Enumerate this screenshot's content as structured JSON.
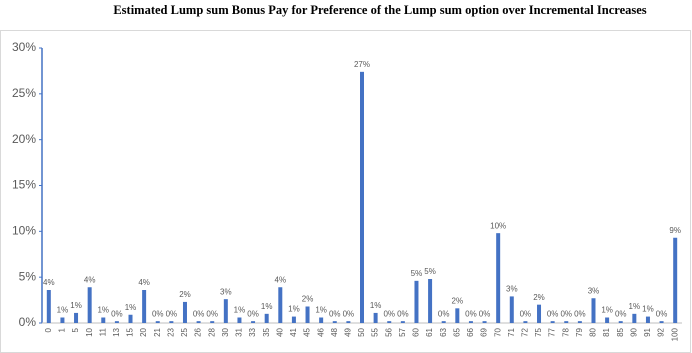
{
  "chart_data": {
    "type": "bar",
    "title": "Estimated Lump sum Bonus Pay for Preference of the Lump sum option over Incremental Increases",
    "categories": [
      "0",
      "1",
      "5",
      "10",
      "11",
      "13",
      "15",
      "20",
      "21",
      "23",
      "25",
      "26",
      "28",
      "30",
      "31",
      "33",
      "35",
      "40",
      "41",
      "45",
      "46",
      "48",
      "49",
      "50",
      "55",
      "56",
      "57",
      "60",
      "61",
      "63",
      "65",
      "66",
      "69",
      "70",
      "71",
      "72",
      "75",
      "77",
      "78",
      "79",
      "80",
      "81",
      "85",
      "90",
      "91",
      "92",
      "100"
    ],
    "values": [
      3.6,
      0.6,
      1.1,
      3.9,
      0.6,
      0.2,
      0.9,
      3.6,
      0.2,
      0.2,
      2.3,
      0.2,
      0.2,
      2.6,
      0.6,
      0.2,
      1.0,
      3.9,
      0.7,
      1.8,
      0.6,
      0.2,
      0.2,
      27.4,
      1.1,
      0.2,
      0.2,
      4.6,
      4.8,
      0.2,
      1.6,
      0.2,
      0.2,
      9.8,
      2.9,
      0.2,
      2.0,
      0.2,
      0.2,
      0.2,
      2.7,
      0.6,
      0.2,
      1.0,
      0.7,
      0.2,
      9.3
    ],
    "value_labels": [
      "4%",
      "1%",
      "1%",
      "4%",
      "1%",
      "0%",
      "1%",
      "4%",
      "0%",
      "0%",
      "2%",
      "0%",
      "0%",
      "3%",
      "1%",
      "0%",
      "1%",
      "4%",
      "1%",
      "2%",
      "1%",
      "0%",
      "0%",
      "27%",
      "1%",
      "0%",
      "0%",
      "5%",
      "5%",
      "0%",
      "2%",
      "0%",
      "0%",
      "10%",
      "3%",
      "0%",
      "2%",
      "0%",
      "0%",
      "0%",
      "3%",
      "1%",
      "0%",
      "1%",
      "1%",
      "0%",
      "9%"
    ],
    "color": "#4472c4",
    "ylim": [
      0,
      30
    ],
    "yticks": [
      {
        "value": 0,
        "label": "0%"
      },
      {
        "value": 5,
        "label": "5%"
      },
      {
        "value": 10,
        "label": "10%"
      },
      {
        "value": 15,
        "label": "15%"
      },
      {
        "value": 20,
        "label": "20%"
      },
      {
        "value": 25,
        "label": "25%"
      },
      {
        "value": 30,
        "label": "30%"
      }
    ],
    "grid": false
  }
}
